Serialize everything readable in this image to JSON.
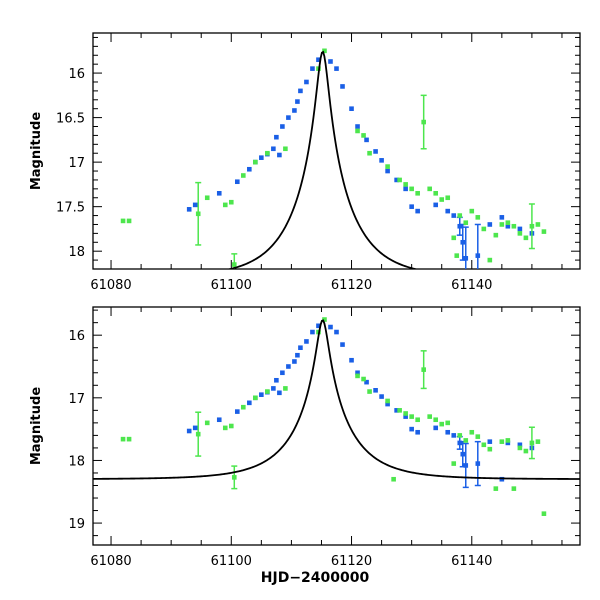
{
  "chart_data": [
    {
      "type": "scatter",
      "panel": "top",
      "xlabel": "",
      "ylabel": "Magnitude",
      "xlim": [
        61077,
        61158
      ],
      "ylim": [
        18.2,
        15.55
      ],
      "y_inverted": true,
      "xticks": [
        61080,
        61100,
        61120,
        61140
      ],
      "xtick_labels": [
        "61080",
        "61100",
        "61120",
        "61140"
      ],
      "yticks": [
        16,
        16.5,
        17,
        17.5,
        18
      ],
      "ytick_labels": [
        "16",
        "16.5",
        "17",
        "17.5",
        "18"
      ],
      "model_curve": {
        "name": "model",
        "color": "#000000",
        "peak_time": 61115.2,
        "peak_mag": 15.76,
        "baseline_mag": 18.3,
        "tE": 9
      },
      "series": [
        {
          "name": "blue",
          "color": "#1a5fe6",
          "points": [
            {
              "x": 61093,
              "y": 17.53
            },
            {
              "x": 61094,
              "y": 17.48
            },
            {
              "x": 61098,
              "y": 17.35
            },
            {
              "x": 61101,
              "y": 17.22
            },
            {
              "x": 61103,
              "y": 17.08
            },
            {
              "x": 61104,
              "y": 17.0
            },
            {
              "x": 61105,
              "y": 16.95
            },
            {
              "x": 61106,
              "y": 16.91
            },
            {
              "x": 61107,
              "y": 16.85
            },
            {
              "x": 61107.5,
              "y": 16.72
            },
            {
              "x": 61108,
              "y": 16.92
            },
            {
              "x": 61108.5,
              "y": 16.6
            },
            {
              "x": 61109.5,
              "y": 16.5
            },
            {
              "x": 61110.5,
              "y": 16.42
            },
            {
              "x": 61111,
              "y": 16.32
            },
            {
              "x": 61111.5,
              "y": 16.2
            },
            {
              "x": 61112.5,
              "y": 16.1
            },
            {
              "x": 61113.5,
              "y": 15.95
            },
            {
              "x": 61114.5,
              "y": 15.85
            },
            {
              "x": 61116.5,
              "y": 15.87
            },
            {
              "x": 61117.5,
              "y": 15.95
            },
            {
              "x": 61118.5,
              "y": 16.15
            },
            {
              "x": 61120,
              "y": 16.4
            },
            {
              "x": 61121,
              "y": 16.6
            },
            {
              "x": 61122.5,
              "y": 16.75
            },
            {
              "x": 61124,
              "y": 16.88
            },
            {
              "x": 61125,
              "y": 16.98
            },
            {
              "x": 61126,
              "y": 17.1
            },
            {
              "x": 61127.5,
              "y": 17.2
            },
            {
              "x": 61129,
              "y": 17.3
            },
            {
              "x": 61130,
              "y": 17.5
            },
            {
              "x": 61131,
              "y": 17.55
            },
            {
              "x": 61134,
              "y": 17.48
            },
            {
              "x": 61136,
              "y": 17.55
            },
            {
              "x": 61137,
              "y": 17.6
            },
            {
              "x": 61138,
              "y": 17.72,
              "err": 0.1
            },
            {
              "x": 61138.5,
              "y": 17.9,
              "err": 0.2
            },
            {
              "x": 61139,
              "y": 18.08,
              "err": 0.35
            },
            {
              "x": 61141,
              "y": 18.05,
              "err": 0.35
            },
            {
              "x": 61143,
              "y": 17.7
            },
            {
              "x": 61145,
              "y": 17.62
            },
            {
              "x": 61146,
              "y": 17.72
            },
            {
              "x": 61148,
              "y": 17.75
            },
            {
              "x": 61150,
              "y": 17.8
            }
          ]
        },
        {
          "name": "green",
          "color": "#4de64d",
          "points": [
            {
              "x": 61082,
              "y": 17.66
            },
            {
              "x": 61083,
              "y": 17.66
            },
            {
              "x": 61094.5,
              "y": 17.58,
              "err": 0.35
            },
            {
              "x": 61096,
              "y": 17.4
            },
            {
              "x": 61099,
              "y": 17.48
            },
            {
              "x": 61100,
              "y": 17.45
            },
            {
              "x": 61100.5,
              "y": 18.15,
              "err": 0.12
            },
            {
              "x": 61102,
              "y": 17.15
            },
            {
              "x": 61104,
              "y": 17.0
            },
            {
              "x": 61106,
              "y": 16.9
            },
            {
              "x": 61109,
              "y": 16.85
            },
            {
              "x": 61114.5,
              "y": 15.95
            },
            {
              "x": 61115.5,
              "y": 15.75
            },
            {
              "x": 61121,
              "y": 16.65
            },
            {
              "x": 61122,
              "y": 16.7
            },
            {
              "x": 61123,
              "y": 16.9
            },
            {
              "x": 61126,
              "y": 17.05
            },
            {
              "x": 61128,
              "y": 17.2
            },
            {
              "x": 61129,
              "y": 17.25
            },
            {
              "x": 61130,
              "y": 17.3
            },
            {
              "x": 61131,
              "y": 17.35
            },
            {
              "x": 61132,
              "y": 16.55,
              "err": 0.3
            },
            {
              "x": 61133,
              "y": 17.3
            },
            {
              "x": 61134,
              "y": 17.35
            },
            {
              "x": 61135,
              "y": 17.42
            },
            {
              "x": 61136,
              "y": 17.4
            },
            {
              "x": 61137,
              "y": 17.85
            },
            {
              "x": 61137.5,
              "y": 18.05
            },
            {
              "x": 61138,
              "y": 17.6
            },
            {
              "x": 61139,
              "y": 17.68
            },
            {
              "x": 61140,
              "y": 17.55
            },
            {
              "x": 61141,
              "y": 17.62
            },
            {
              "x": 61142,
              "y": 17.75
            },
            {
              "x": 61143,
              "y": 18.1
            },
            {
              "x": 61144,
              "y": 17.82
            },
            {
              "x": 61145,
              "y": 17.7
            },
            {
              "x": 61146,
              "y": 17.68
            },
            {
              "x": 61147,
              "y": 17.72
            },
            {
              "x": 61148,
              "y": 17.8
            },
            {
              "x": 61149,
              "y": 17.85
            },
            {
              "x": 61150,
              "y": 17.72,
              "err": 0.25
            },
            {
              "x": 61151,
              "y": 17.7
            },
            {
              "x": 61152,
              "y": 17.78
            }
          ]
        }
      ]
    },
    {
      "type": "scatter",
      "panel": "bottom",
      "xlabel": "HJD−2400000",
      "ylabel": "Magnitude",
      "xlim": [
        61077,
        61158
      ],
      "ylim": [
        19.35,
        15.55
      ],
      "y_inverted": true,
      "xticks": [
        61080,
        61100,
        61120,
        61140
      ],
      "xtick_labels": [
        "61080",
        "61100",
        "61120",
        "61140"
      ],
      "yticks": [
        16,
        17,
        18,
        19
      ],
      "ytick_labels": [
        "16",
        "17",
        "18",
        "19"
      ],
      "model_curve": {
        "name": "model",
        "color": "#000000",
        "peak_time": 61115.2,
        "peak_mag": 15.76,
        "baseline_mag": 18.3,
        "tE": 9
      },
      "series": [
        {
          "name": "blue",
          "color": "#1a5fe6",
          "points": [
            {
              "x": 61093,
              "y": 17.53
            },
            {
              "x": 61094,
              "y": 17.48
            },
            {
              "x": 61098,
              "y": 17.35
            },
            {
              "x": 61101,
              "y": 17.22
            },
            {
              "x": 61103,
              "y": 17.08
            },
            {
              "x": 61104,
              "y": 17.0
            },
            {
              "x": 61105,
              "y": 16.95
            },
            {
              "x": 61106,
              "y": 16.91
            },
            {
              "x": 61107,
              "y": 16.85
            },
            {
              "x": 61107.5,
              "y": 16.72
            },
            {
              "x": 61108,
              "y": 16.92
            },
            {
              "x": 61108.5,
              "y": 16.6
            },
            {
              "x": 61109.5,
              "y": 16.5
            },
            {
              "x": 61110.5,
              "y": 16.42
            },
            {
              "x": 61111,
              "y": 16.32
            },
            {
              "x": 61111.5,
              "y": 16.2
            },
            {
              "x": 61112.5,
              "y": 16.1
            },
            {
              "x": 61113.5,
              "y": 15.95
            },
            {
              "x": 61114.5,
              "y": 15.85
            },
            {
              "x": 61116.5,
              "y": 15.87
            },
            {
              "x": 61117.5,
              "y": 15.95
            },
            {
              "x": 61118.5,
              "y": 16.15
            },
            {
              "x": 61120,
              "y": 16.4
            },
            {
              "x": 61121,
              "y": 16.6
            },
            {
              "x": 61122.5,
              "y": 16.75
            },
            {
              "x": 61124,
              "y": 16.88
            },
            {
              "x": 61125,
              "y": 16.98
            },
            {
              "x": 61126,
              "y": 17.1
            },
            {
              "x": 61127.5,
              "y": 17.2
            },
            {
              "x": 61129,
              "y": 17.3
            },
            {
              "x": 61130,
              "y": 17.5
            },
            {
              "x": 61131,
              "y": 17.55
            },
            {
              "x": 61134,
              "y": 17.48
            },
            {
              "x": 61136,
              "y": 17.55
            },
            {
              "x": 61137,
              "y": 17.6
            },
            {
              "x": 61138,
              "y": 17.72,
              "err": 0.1
            },
            {
              "x": 61138.5,
              "y": 17.9,
              "err": 0.2
            },
            {
              "x": 61139,
              "y": 18.08,
              "err": 0.35
            },
            {
              "x": 61141,
              "y": 18.05,
              "err": 0.35
            },
            {
              "x": 61143,
              "y": 17.7
            },
            {
              "x": 61145,
              "y": 18.3
            },
            {
              "x": 61146,
              "y": 17.72
            },
            {
              "x": 61148,
              "y": 17.75
            },
            {
              "x": 61150,
              "y": 17.8
            }
          ]
        },
        {
          "name": "green",
          "color": "#4de64d",
          "points": [
            {
              "x": 61082,
              "y": 17.66
            },
            {
              "x": 61083,
              "y": 17.66
            },
            {
              "x": 61094.5,
              "y": 17.58,
              "err": 0.35
            },
            {
              "x": 61096,
              "y": 17.4
            },
            {
              "x": 61099,
              "y": 17.48
            },
            {
              "x": 61100,
              "y": 17.45
            },
            {
              "x": 61100.5,
              "y": 18.27,
              "err": 0.18
            },
            {
              "x": 61102,
              "y": 17.15
            },
            {
              "x": 61104,
              "y": 17.0
            },
            {
              "x": 61106,
              "y": 16.9
            },
            {
              "x": 61109,
              "y": 16.85
            },
            {
              "x": 61114.5,
              "y": 15.95
            },
            {
              "x": 61115.5,
              "y": 15.75
            },
            {
              "x": 61121,
              "y": 16.65
            },
            {
              "x": 61122,
              "y": 16.7
            },
            {
              "x": 61123,
              "y": 16.9
            },
            {
              "x": 61126,
              "y": 17.05
            },
            {
              "x": 61127,
              "y": 18.3
            },
            {
              "x": 61128,
              "y": 17.2
            },
            {
              "x": 61129,
              "y": 17.25
            },
            {
              "x": 61130,
              "y": 17.3
            },
            {
              "x": 61131,
              "y": 17.35
            },
            {
              "x": 61132,
              "y": 16.55,
              "err": 0.3
            },
            {
              "x": 61133,
              "y": 17.3
            },
            {
              "x": 61134,
              "y": 17.35
            },
            {
              "x": 61135,
              "y": 17.42
            },
            {
              "x": 61136,
              "y": 17.4
            },
            {
              "x": 61137,
              "y": 18.05
            },
            {
              "x": 61138,
              "y": 17.6
            },
            {
              "x": 61139,
              "y": 17.68
            },
            {
              "x": 61140,
              "y": 17.55
            },
            {
              "x": 61141,
              "y": 17.62
            },
            {
              "x": 61142,
              "y": 17.75
            },
            {
              "x": 61143,
              "y": 17.82
            },
            {
              "x": 61144,
              "y": 18.45
            },
            {
              "x": 61145,
              "y": 17.7
            },
            {
              "x": 61146,
              "y": 17.68
            },
            {
              "x": 61147,
              "y": 18.45
            },
            {
              "x": 61148,
              "y": 17.8
            },
            {
              "x": 61149,
              "y": 17.85
            },
            {
              "x": 61150,
              "y": 17.72,
              "err": 0.25
            },
            {
              "x": 61151,
              "y": 17.7
            },
            {
              "x": 61152,
              "y": 18.85
            }
          ]
        }
      ]
    }
  ]
}
